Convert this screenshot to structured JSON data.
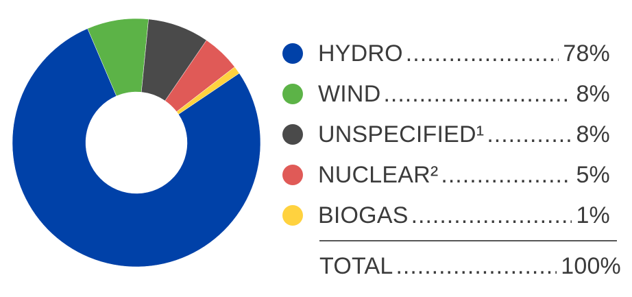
{
  "chart_data": {
    "type": "pie",
    "donut": true,
    "slices": [
      {
        "label": "HYDRO",
        "value": 78,
        "value_label": "78%",
        "color": "#0041a8"
      },
      {
        "label": "WIND",
        "value": 8,
        "value_label": "8%",
        "color": "#5cb347"
      },
      {
        "label": "UNSPECIFIED¹",
        "value": 8,
        "value_label": "8%",
        "color": "#4a4a4a"
      },
      {
        "label": "NUCLEAR²",
        "value": 5,
        "value_label": "5%",
        "color": "#e05a57"
      },
      {
        "label": "BIOGAS",
        "value": 1,
        "value_label": "1%",
        "color": "#ffd23f"
      }
    ],
    "total": {
      "label": "TOTAL",
      "value_label": "100%"
    },
    "legend_position": "right"
  }
}
